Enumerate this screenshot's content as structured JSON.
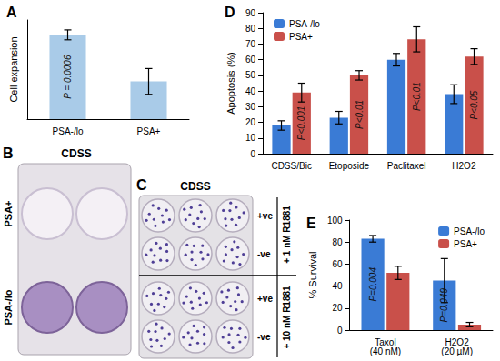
{
  "chart_data": [
    {
      "type": "bar",
      "title": "A",
      "y_label": "Cell expansion",
      "categories": [
        "PSA-/lo",
        "PSA+"
      ],
      "values": [
        0.85,
        0.38
      ],
      "errors": [
        0.05,
        0.13
      ],
      "color": "#a9cbe8",
      "annotations": [
        "P = 0.0006"
      ],
      "ylim": [
        0,
        1
      ],
      "tick_labels": "x",
      "grid": false
    },
    {
      "type": "bar",
      "title": "D",
      "y_label": "Apoptosis (%)",
      "categories": [
        "CDSS/Bic",
        "Etoposide",
        "Paclitaxel",
        "H2O2"
      ],
      "series": [
        {
          "name": "PSA-/lo",
          "color": "#3a7bd5",
          "values": [
            18,
            23,
            60,
            38
          ],
          "errors": [
            3,
            4,
            4,
            6
          ]
        },
        {
          "name": "PSA+",
          "color": "#c9504a",
          "values": [
            39,
            50,
            73,
            62
          ],
          "errors": [
            6,
            3,
            8,
            5
          ]
        }
      ],
      "annotations": [
        "P<0.001",
        "P<0.01",
        "P<0.01",
        "P<0.05"
      ],
      "ylim": [
        0,
        90
      ],
      "yticks": [
        0,
        10,
        20,
        30,
        40,
        50,
        60,
        70,
        80,
        90
      ],
      "legend": "top-left",
      "grid": false
    },
    {
      "type": "bar",
      "title": "E",
      "y_label": "% Survival",
      "categories": [
        "Taxol (40 nM)",
        "H2O2 (20 µM)"
      ],
      "series": [
        {
          "name": "PSA-/lo",
          "color": "#3a7bd5",
          "values": [
            83,
            45
          ],
          "errors": [
            3,
            20
          ]
        },
        {
          "name": "PSA+",
          "color": "#c9504a",
          "values": [
            52,
            5
          ],
          "errors": [
            6,
            2
          ]
        }
      ],
      "annotations": [
        "P=0.004",
        "P=0.049"
      ],
      "ylim": [
        0,
        100
      ],
      "yticks": [
        0,
        20,
        40,
        60,
        80,
        100
      ],
      "legend": "top-right",
      "grid": false
    }
  ],
  "images": [
    {
      "title": "B",
      "header": "CDSS",
      "rows": [
        "PSA+",
        "PSA-/lo"
      ]
    },
    {
      "title": "C",
      "header": "CDSS",
      "rows": [
        "+ve",
        "-ve",
        "+ve",
        "-ve"
      ],
      "groups": [
        "+ 1 nM R1881",
        "+ 10 nM R1881"
      ]
    }
  ]
}
